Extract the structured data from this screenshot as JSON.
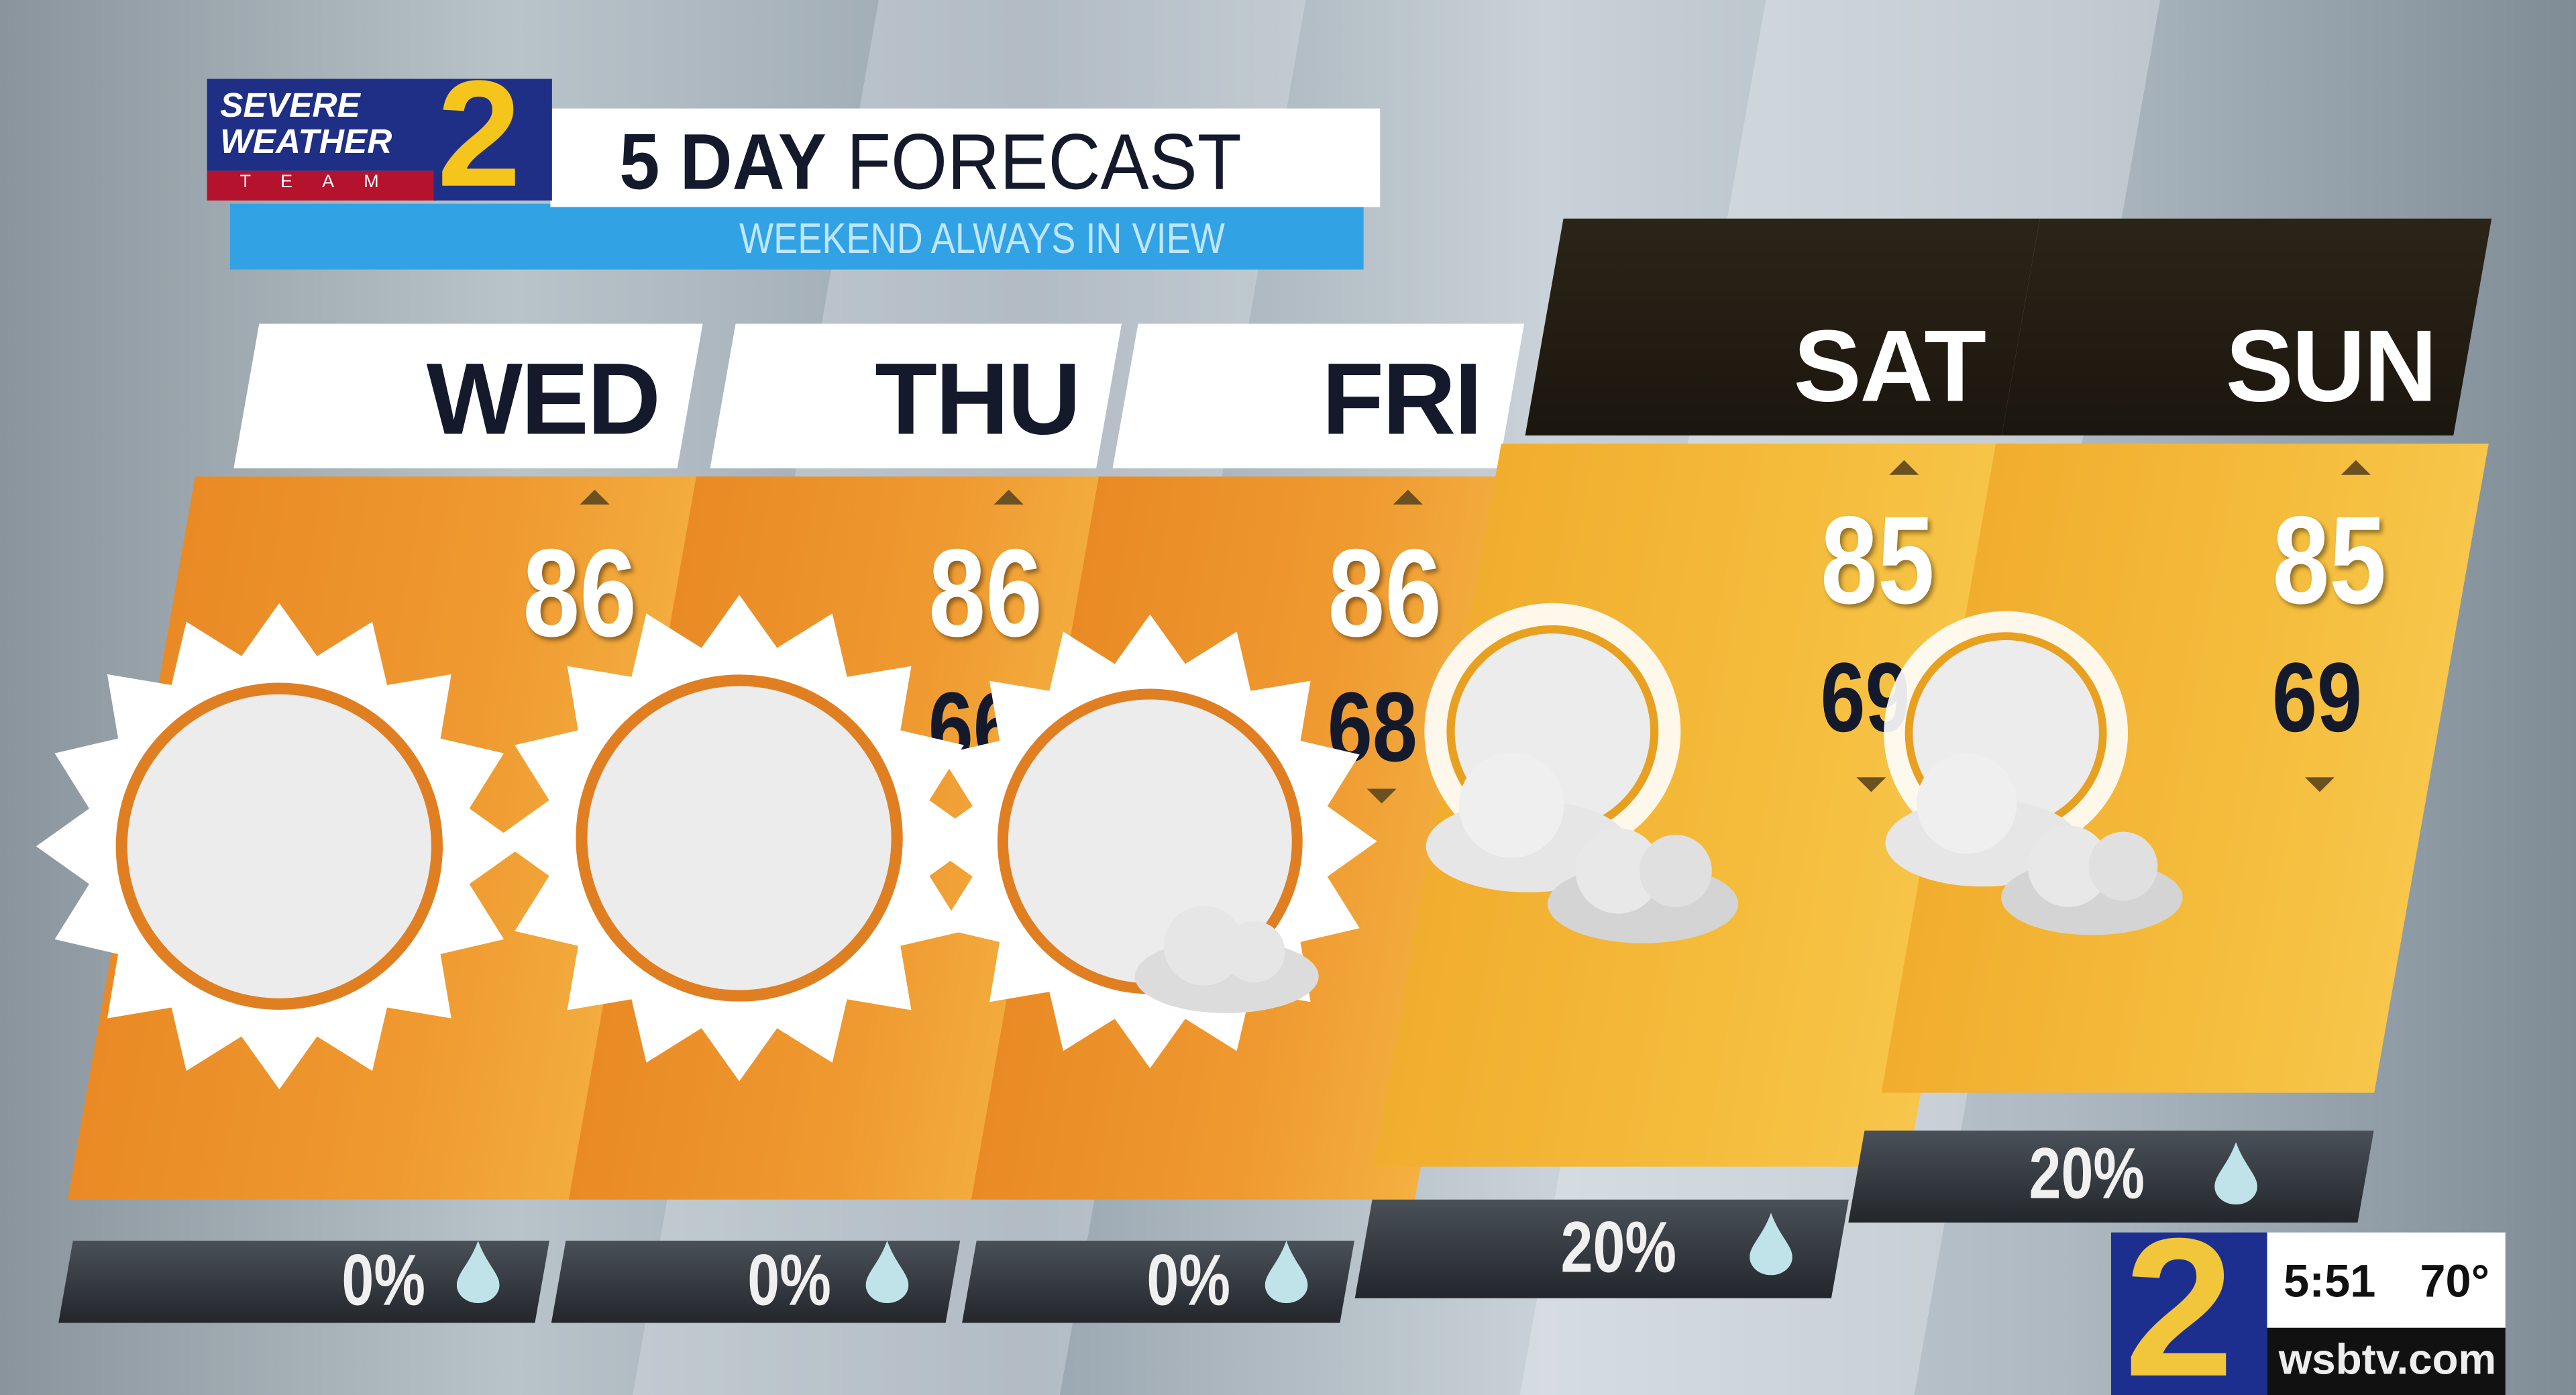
{
  "header": {
    "logo_text": "SEVERE WEATHER 2 TEAM",
    "title_bold": "5 DAY",
    "title_light": "FORECAST",
    "subtitle": "WEEKEND ALWAYS IN VIEW"
  },
  "days": [
    {
      "name": "WED",
      "high": "86",
      "low": "",
      "precip": "0%",
      "icon": "sunny-icon"
    },
    {
      "name": "THU",
      "high": "86",
      "low": "66",
      "precip": "0%",
      "icon": "sunny-icon"
    },
    {
      "name": "FRI",
      "high": "86",
      "low": "68",
      "precip": "0%",
      "icon": "mostly-sunny-icon"
    },
    {
      "name": "SAT",
      "high": "85",
      "low": "69",
      "precip": "20%",
      "icon": "partly-cloudy-icon"
    },
    {
      "name": "SUN",
      "high": "85",
      "low": "69",
      "precip": "20%",
      "icon": "partly-cloudy-icon"
    }
  ],
  "bug": {
    "channel": "2",
    "time": "5:51",
    "temp": "70°",
    "site": "wsbtv.com"
  },
  "colors": {
    "weekday_panel": "#ec8f28",
    "weekend_panel": "#f3b536",
    "title_blue": "#2f9fe0",
    "logo_navy": "#1f2f86",
    "logo_red": "#b5122e",
    "logo_yellow": "#f5c51c",
    "low_temp": "#141a2c"
  }
}
